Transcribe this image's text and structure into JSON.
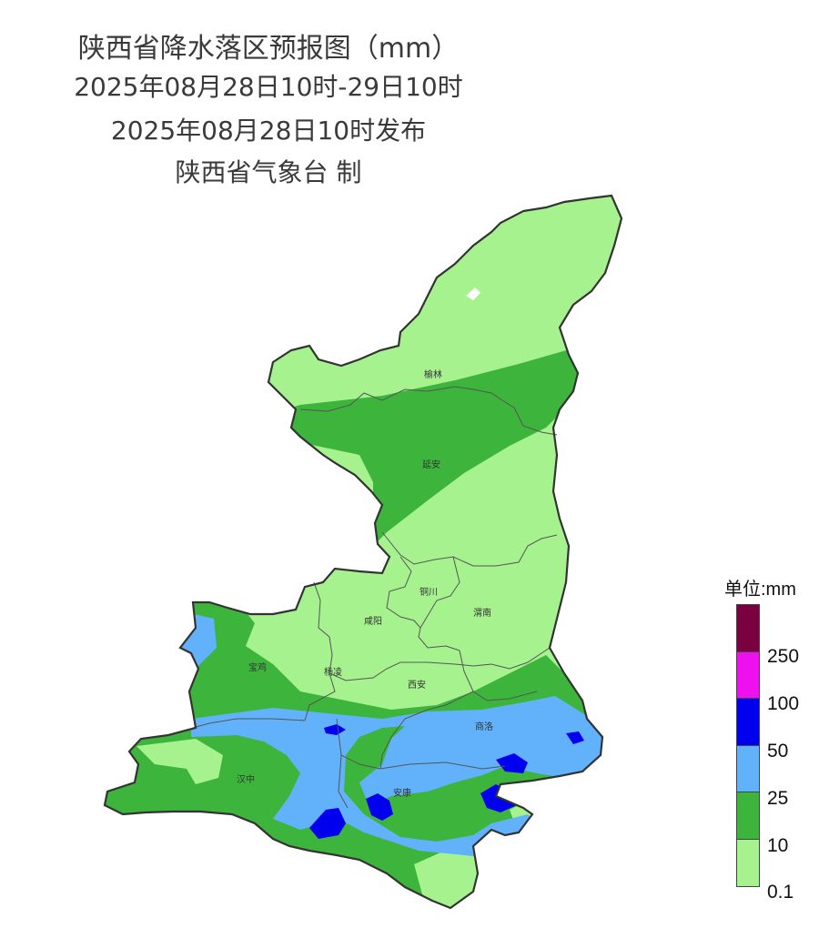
{
  "header": {
    "title": "陕西省降水落区预报图（mm）",
    "period": "2025年08月28日10时-29日10时",
    "issued": "2025年08月28日10时发布",
    "producer": "陕西省气象台 制"
  },
  "map": {
    "region": "陕西省",
    "cities": [
      {
        "id": "yulin",
        "name": "榆林"
      },
      {
        "id": "yanan",
        "name": "延安"
      },
      {
        "id": "tongchuan",
        "name": "铜川"
      },
      {
        "id": "xianyang",
        "name": "咸阳"
      },
      {
        "id": "weinan",
        "name": "渭南"
      },
      {
        "id": "baoji",
        "name": "宝鸡"
      },
      {
        "id": "yangling",
        "name": "杨凌"
      },
      {
        "id": "xian",
        "name": "西安"
      },
      {
        "id": "shangluo",
        "name": "商洛"
      },
      {
        "id": "hanzhong",
        "name": "汉中"
      },
      {
        "id": "ankang",
        "name": "安康"
      }
    ]
  },
  "legend": {
    "title": "单位:mm",
    "bins": [
      {
        "color": "#7a0040",
        "label": ""
      },
      {
        "color": "#ee10ee",
        "label": "250"
      },
      {
        "color": "#0000ee",
        "label": "100"
      },
      {
        "color": "#62b2fb",
        "label": "50"
      },
      {
        "color": "#3db53d",
        "label": "25"
      },
      {
        "color": "#a6f28f",
        "label": "10"
      }
    ],
    "bottom_label": "0.1"
  }
}
